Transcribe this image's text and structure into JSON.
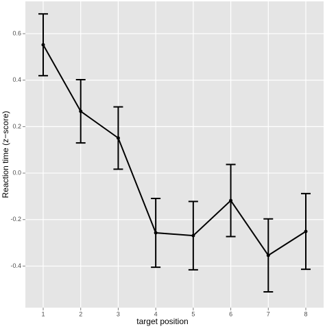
{
  "chart_data": {
    "type": "line",
    "x_label": "target position",
    "y_label": "Reaction time (z−score)",
    "x": [
      1,
      2,
      3,
      4,
      5,
      6,
      7,
      8
    ],
    "series": [
      {
        "color": "#000000",
        "values": [
          0.552,
          0.266,
          0.151,
          -0.257,
          -0.269,
          -0.118,
          -0.354,
          -0.251
        ],
        "errors": [
          0.133,
          0.136,
          0.134,
          0.148,
          0.147,
          0.155,
          0.157,
          0.163
        ]
      }
    ],
    "xlim": [
      0.525,
      8.475
    ],
    "xticks": [
      1,
      2,
      3,
      4,
      5,
      6,
      7,
      8
    ],
    "ylim": [
      -0.579,
      0.739
    ],
    "yticks": [
      -0.4,
      -0.2,
      {
        "value": 0,
        "label": "0.0"
      },
      0.2,
      0.4,
      0.6
    ],
    "grid": true,
    "background": "#E5E5E5"
  }
}
